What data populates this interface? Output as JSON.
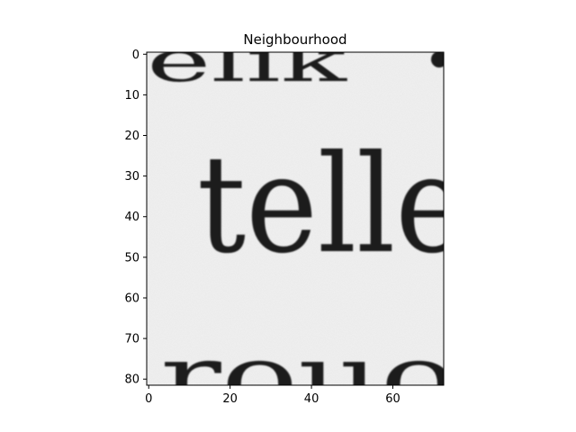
{
  "figure": {
    "title": "Neighbourhood",
    "type": "image",
    "x_ticks": [
      "0",
      "20",
      "40",
      "60"
    ],
    "y_ticks": [
      "0",
      "10",
      "20",
      "30",
      "40",
      "50",
      "60",
      "70",
      "80"
    ],
    "xlim": [
      -0.5,
      72.5
    ],
    "ylim": [
      81.5,
      -0.5
    ],
    "image_size": {
      "cols": 73,
      "rows": 82
    },
    "colormap": "grayscale"
  },
  "image_content": {
    "description_words": [
      "elik",
      "telle",
      "rouo"
    ],
    "main_word": "telle",
    "top_word_fragment": "elik",
    "bottom_word_fragment": "rouo"
  },
  "colors": {
    "paper": "#f1f1f1",
    "ink": "#1b1b1b",
    "axis": "#000000"
  }
}
